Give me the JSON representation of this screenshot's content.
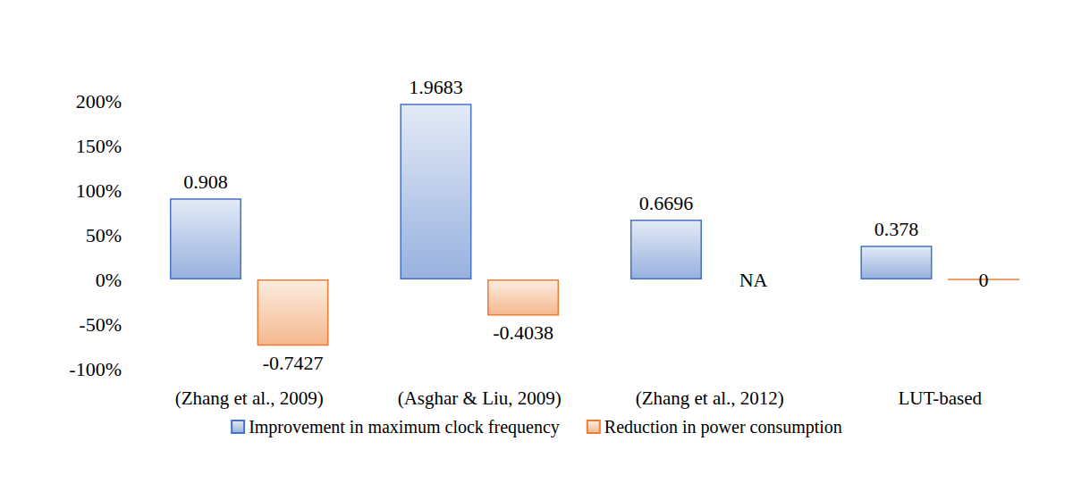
{
  "chart_data": {
    "type": "bar",
    "categories": [
      "(Zhang et al., 2009)",
      "(Asghar & Liu, 2009)",
      "(Zhang et al., 2012)",
      "LUT-based"
    ],
    "series": [
      {
        "name": "Improvement in maximum clock frequency",
        "color": "#4472c4",
        "values": [
          0.908,
          1.9683,
          0.6696,
          0.378
        ]
      },
      {
        "name": "Reduction in power consumption",
        "color": "#ed7d31",
        "values": [
          -0.7427,
          -0.4038,
          null,
          0
        ],
        "value_labels": [
          "-0.7427",
          "-0.4038",
          "NA",
          "0"
        ]
      }
    ],
    "ylim": [
      -1,
      2
    ],
    "yticks": [
      {
        "value": -1,
        "label": "-100%"
      },
      {
        "value": -0.5,
        "label": "-50%"
      },
      {
        "value": 0,
        "label": "0%"
      },
      {
        "value": 0.5,
        "label": "50%"
      },
      {
        "value": 1,
        "label": "100%"
      },
      {
        "value": 1.5,
        "label": "150%"
      },
      {
        "value": 2,
        "label": "200%"
      }
    ],
    "grid": false,
    "legend": "bottom",
    "data_labels": true
  }
}
